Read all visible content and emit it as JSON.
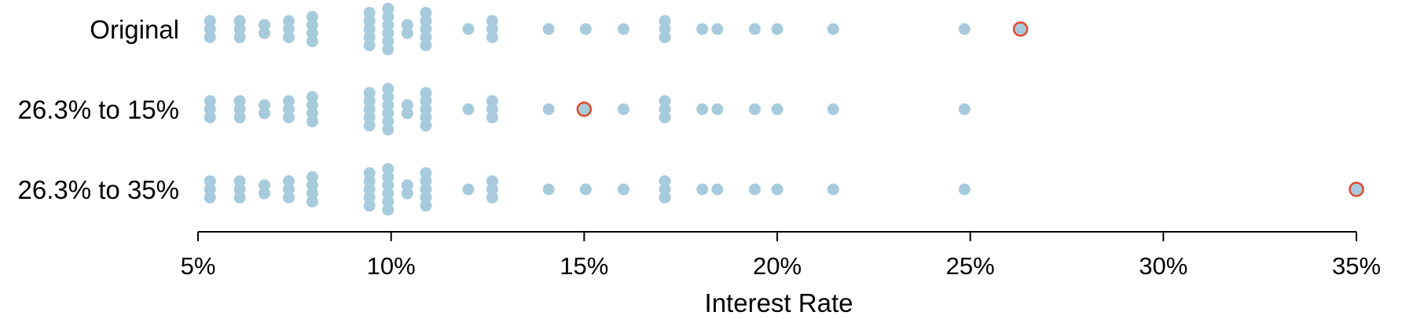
{
  "chart_data": {
    "type": "scatter",
    "subtype": "stacked dot plot",
    "xlabel": "Interest Rate",
    "xlim": [
      5,
      35
    ],
    "x_ticks": [
      5,
      10,
      15,
      20,
      25,
      30,
      35
    ],
    "x_tick_labels": [
      "5%",
      "10%",
      "15%",
      "20%",
      "25%",
      "30%",
      "35%"
    ],
    "grid": false,
    "colors": {
      "dot": "#a7cbdc",
      "highlight": "#e2492a",
      "axis": "#000000"
    },
    "series": [
      {
        "name": "Original",
        "values": [
          5.31,
          5.31,
          5.31,
          6.08,
          6.08,
          6.08,
          6.72,
          6.72,
          7.35,
          7.35,
          7.35,
          7.96,
          7.96,
          7.96,
          7.96,
          9.44,
          9.44,
          9.44,
          9.44,
          9.44,
          9.92,
          9.92,
          9.92,
          9.92,
          9.92,
          9.92,
          10.42,
          10.42,
          10.9,
          10.9,
          10.9,
          10.9,
          10.9,
          12.0,
          12.62,
          12.62,
          12.62,
          14.08,
          15.04,
          16.02,
          17.09,
          17.09,
          17.09,
          18.06,
          18.45,
          19.42,
          20.0,
          21.45,
          24.85,
          26.3
        ],
        "highlight_value": 26.3
      },
      {
        "name": "26.3% to 15%",
        "values": [
          5.31,
          5.31,
          5.31,
          6.08,
          6.08,
          6.08,
          6.72,
          6.72,
          7.35,
          7.35,
          7.35,
          7.96,
          7.96,
          7.96,
          7.96,
          9.44,
          9.44,
          9.44,
          9.44,
          9.44,
          9.92,
          9.92,
          9.92,
          9.92,
          9.92,
          9.92,
          10.42,
          10.42,
          10.9,
          10.9,
          10.9,
          10.9,
          10.9,
          12.0,
          12.62,
          12.62,
          12.62,
          14.08,
          15.04,
          16.02,
          17.09,
          17.09,
          17.09,
          18.06,
          18.45,
          19.42,
          20.0,
          21.45,
          24.85,
          15.0
        ],
        "highlight_value": 15.0
      },
      {
        "name": "26.3% to 35%",
        "values": [
          5.31,
          5.31,
          5.31,
          6.08,
          6.08,
          6.08,
          6.72,
          6.72,
          7.35,
          7.35,
          7.35,
          7.96,
          7.96,
          7.96,
          7.96,
          9.44,
          9.44,
          9.44,
          9.44,
          9.44,
          9.92,
          9.92,
          9.92,
          9.92,
          9.92,
          9.92,
          10.42,
          10.42,
          10.9,
          10.9,
          10.9,
          10.9,
          10.9,
          12.0,
          12.62,
          12.62,
          12.62,
          14.08,
          15.04,
          16.02,
          17.09,
          17.09,
          17.09,
          18.06,
          18.45,
          19.42,
          20.0,
          21.45,
          24.85,
          35.0
        ],
        "highlight_value": 35.0
      }
    ]
  }
}
